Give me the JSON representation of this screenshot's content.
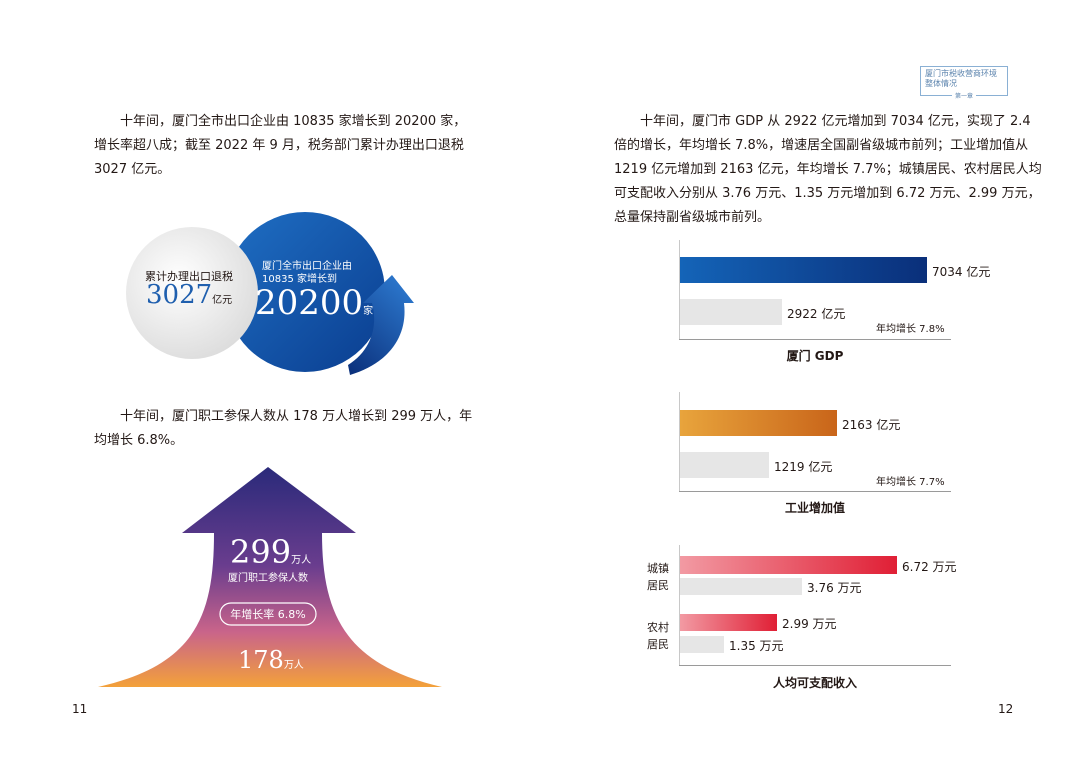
{
  "header": {
    "title_line1": "厦门市税收营商环境",
    "title_line2": "整体情况",
    "chapter": "第一章"
  },
  "left": {
    "para1": [
      "十年间，厦门全市出口企业由 10835 家增长到 20200 家，",
      "增长率超八成；截至 2022 年 9 月，税务部门累计办理出口退税",
      "3027 亿元。"
    ],
    "circle_small": {
      "label": "累计办理出口退税",
      "value": "3027",
      "unit": "亿元"
    },
    "circle_big": {
      "label_line1": "厦门全市出口企业由",
      "label_line2": "10835 家增长到",
      "value": "20200",
      "unit": "家"
    },
    "para2": [
      "十年间，厦门职工参保人数从 178 万人增长到 299 万人，年",
      "均增长 6.8%。"
    ],
    "arrow": {
      "top_value": "299",
      "top_unit": "万人",
      "top_label": "厦门职工参保人数",
      "rate_label": "年增长率 6.8%",
      "bottom_value": "178",
      "bottom_unit": "万人"
    },
    "page_number": "11"
  },
  "right": {
    "para": [
      "十年间，厦门市 GDP 从 2922 亿元增加到 7034 亿元，实现了 2.4",
      "倍的增长，年均增长 7.8%，增速居全国副省级城市前列；工业增加值从",
      "1219 亿元增加到 2163 亿元，年均增长 7.7%；城镇居民、农村居民人均",
      "可支配收入分别从 3.76 万元、1.35 万元增加到 6.72 万元、2.99 万元，",
      "总量保持副省级城市前列。"
    ],
    "page_number": "12"
  },
  "chart_data": [
    {
      "type": "bar",
      "title": "厦门 GDP",
      "series": [
        {
          "value": 7034,
          "label": "7034 亿元",
          "color": "#0d3f8f"
        },
        {
          "value": 2922,
          "label": "2922 亿元",
          "color": "#e6e6e6"
        }
      ],
      "annotation": "年均增长 7.8%",
      "xlim": [
        0,
        7700
      ]
    },
    {
      "type": "bar",
      "title": "工业增加值",
      "series": [
        {
          "value": 2163,
          "label": "2163 亿元",
          "color": "#d27d22"
        },
        {
          "value": 1219,
          "label": "1219 亿元",
          "color": "#e6e6e6"
        }
      ],
      "annotation": "年均增长 7.7%",
      "xlim": [
        0,
        3710
      ]
    },
    {
      "type": "bar",
      "title": "人均可支配收入",
      "categories": [
        "城镇居民",
        "农村居民"
      ],
      "category_lines": [
        [
          "城镇",
          "居民"
        ],
        [
          "农村",
          "居民"
        ]
      ],
      "series": [
        {
          "values": [
            6.72,
            2.99
          ],
          "labels": [
            "6.72 万元",
            "2.99 万元"
          ],
          "color": "#e23a4c"
        },
        {
          "values": [
            3.76,
            1.35
          ],
          "labels": [
            "3.76 万元",
            "1.35 万元"
          ],
          "color": "#e6e6e6"
        }
      ],
      "xlim": [
        0,
        8.35
      ]
    }
  ]
}
